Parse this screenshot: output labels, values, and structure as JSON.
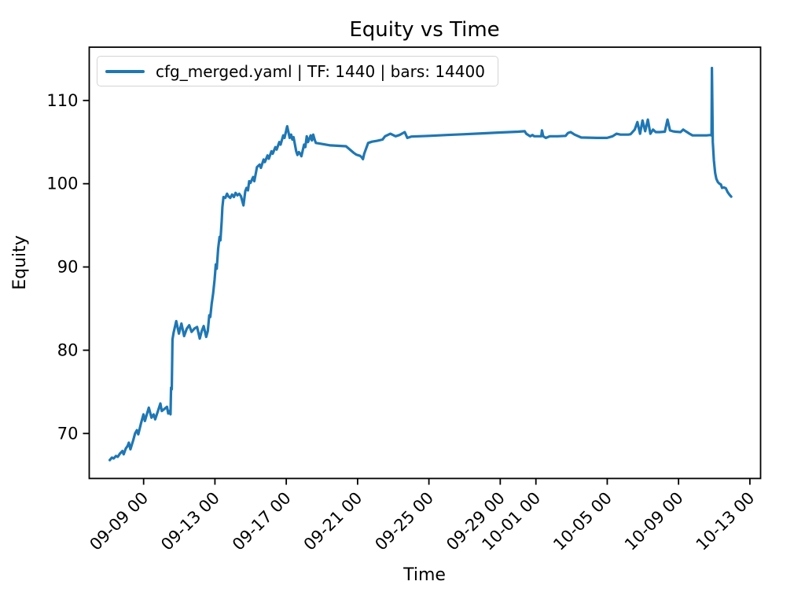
{
  "title": "Equity vs Time",
  "axes": {
    "xlabel": "Time",
    "ylabel": "Equity"
  },
  "legend": {
    "label": "cfg_merged.yaml | TF: 1440 | bars: 14400",
    "position": "upper-left"
  },
  "colors": {
    "line": "#1f77b4",
    "spine": "#000000",
    "legend_border": "#d4d4d4",
    "background": "#ffffff"
  },
  "chart_data": {
    "type": "line",
    "title": "Equity vs Time",
    "xlabel": "Time",
    "ylabel": "Equity",
    "grid": false,
    "legend_position": "upper-left",
    "x_unit_note": "days; tick '09-09 00' is at x=3, one unit = one day",
    "xlim": [
      -0.05,
      37.6
    ],
    "ylim": [
      64.6,
      116.4
    ],
    "xticks": {
      "positions": [
        3,
        7,
        11,
        15,
        19,
        23,
        25,
        29,
        33,
        37
      ],
      "labels": [
        "09-09 00",
        "09-13 00",
        "09-17 00",
        "09-21 00",
        "09-25 00",
        "09-29 00",
        "10-01 00",
        "10-05 00",
        "10-09 00",
        "10-13 00"
      ],
      "rotation_deg": 45
    },
    "yticks": [
      70,
      80,
      90,
      100,
      110
    ],
    "series": [
      {
        "name": "cfg_merged.yaml | TF: 1440 | bars: 14400",
        "color": "#1f77b4",
        "points": [
          [
            1.1,
            66.8
          ],
          [
            1.22,
            67.1
          ],
          [
            1.32,
            67.0
          ],
          [
            1.45,
            67.3
          ],
          [
            1.55,
            67.2
          ],
          [
            1.68,
            67.6
          ],
          [
            1.81,
            67.9
          ],
          [
            1.88,
            67.5
          ],
          [
            2.0,
            68.2
          ],
          [
            2.1,
            68.5
          ],
          [
            2.17,
            68.9
          ],
          [
            2.26,
            68.1
          ],
          [
            2.42,
            69.2
          ],
          [
            2.52,
            70.0
          ],
          [
            2.62,
            70.4
          ],
          [
            2.7,
            69.9
          ],
          [
            2.85,
            71.2
          ],
          [
            2.99,
            72.3
          ],
          [
            3.07,
            71.5
          ],
          [
            3.21,
            72.5
          ],
          [
            3.29,
            73.1
          ],
          [
            3.44,
            71.9
          ],
          [
            3.56,
            72.3
          ],
          [
            3.65,
            71.7
          ],
          [
            3.79,
            72.6
          ],
          [
            3.94,
            73.6
          ],
          [
            4.02,
            72.7
          ],
          [
            4.14,
            72.9
          ],
          [
            4.31,
            73.2
          ],
          [
            4.38,
            72.4
          ],
          [
            4.46,
            72.7
          ],
          [
            4.51,
            72.3
          ],
          [
            4.54,
            75.5
          ],
          [
            4.58,
            75.3
          ],
          [
            4.62,
            81.3
          ],
          [
            4.68,
            82.1
          ],
          [
            4.83,
            83.5
          ],
          [
            4.98,
            82.0
          ],
          [
            5.12,
            83.2
          ],
          [
            5.27,
            81.7
          ],
          [
            5.42,
            82.6
          ],
          [
            5.56,
            83.0
          ],
          [
            5.69,
            82.2
          ],
          [
            5.85,
            82.6
          ],
          [
            6.0,
            82.8
          ],
          [
            6.15,
            81.4
          ],
          [
            6.26,
            82.3
          ],
          [
            6.37,
            82.9
          ],
          [
            6.51,
            81.6
          ],
          [
            6.6,
            82.3
          ],
          [
            6.68,
            84.2
          ],
          [
            6.74,
            84.0
          ],
          [
            6.82,
            85.6
          ],
          [
            6.9,
            86.8
          ],
          [
            6.98,
            88.5
          ],
          [
            7.05,
            90.3
          ],
          [
            7.1,
            89.8
          ],
          [
            7.18,
            92.2
          ],
          [
            7.26,
            93.6
          ],
          [
            7.31,
            93.2
          ],
          [
            7.38,
            95.5
          ],
          [
            7.42,
            97.2
          ],
          [
            7.48,
            98.4
          ],
          [
            7.58,
            98.3
          ],
          [
            7.68,
            98.8
          ],
          [
            7.75,
            98.5
          ],
          [
            7.86,
            98.3
          ],
          [
            7.96,
            98.7
          ],
          [
            8.06,
            98.4
          ],
          [
            8.16,
            98.9
          ],
          [
            8.26,
            98.6
          ],
          [
            8.36,
            98.8
          ],
          [
            8.46,
            98.5
          ],
          [
            8.6,
            97.4
          ],
          [
            8.7,
            99.1
          ],
          [
            8.77,
            99.5
          ],
          [
            8.85,
            99.2
          ],
          [
            8.92,
            100.3
          ],
          [
            8.99,
            100.1
          ],
          [
            9.14,
            100.8
          ],
          [
            9.21,
            100.3
          ],
          [
            9.36,
            102.0
          ],
          [
            9.51,
            102.3
          ],
          [
            9.58,
            101.9
          ],
          [
            9.73,
            102.9
          ],
          [
            9.8,
            102.6
          ],
          [
            9.95,
            103.4
          ],
          [
            10.02,
            103.0
          ],
          [
            10.17,
            103.9
          ],
          [
            10.24,
            103.6
          ],
          [
            10.39,
            104.4
          ],
          [
            10.46,
            104.1
          ],
          [
            10.61,
            105.0
          ],
          [
            10.68,
            104.7
          ],
          [
            10.83,
            105.8
          ],
          [
            10.9,
            105.5
          ],
          [
            11.05,
            106.9
          ],
          [
            11.19,
            105.5
          ],
          [
            11.27,
            105.9
          ],
          [
            11.34,
            105.3
          ],
          [
            11.41,
            105.6
          ],
          [
            11.56,
            103.9
          ],
          [
            11.63,
            103.45
          ],
          [
            11.71,
            103.8
          ],
          [
            11.78,
            103.6
          ],
          [
            11.85,
            103.3
          ],
          [
            12.0,
            104.7
          ],
          [
            12.07,
            104.4
          ],
          [
            12.15,
            105.7
          ],
          [
            12.22,
            105.0
          ],
          [
            12.37,
            105.8
          ],
          [
            12.44,
            105.2
          ],
          [
            12.51,
            105.9
          ],
          [
            12.59,
            105.3
          ],
          [
            12.66,
            104.9
          ],
          [
            12.81,
            104.85
          ],
          [
            13.47,
            104.6
          ],
          [
            14.35,
            104.5
          ],
          [
            14.79,
            103.7
          ],
          [
            14.92,
            103.5
          ],
          [
            15.14,
            103.35
          ],
          [
            15.22,
            103.2
          ],
          [
            15.3,
            102.95
          ],
          [
            15.37,
            103.6
          ],
          [
            15.59,
            104.9
          ],
          [
            15.81,
            105.05
          ],
          [
            16.1,
            105.15
          ],
          [
            16.4,
            105.3
          ],
          [
            16.54,
            105.7
          ],
          [
            16.84,
            106.0
          ],
          [
            17.13,
            105.7
          ],
          [
            17.35,
            105.85
          ],
          [
            17.64,
            106.2
          ],
          [
            17.79,
            105.5
          ],
          [
            18.01,
            105.66
          ],
          [
            19.0,
            105.75
          ],
          [
            20.0,
            105.85
          ],
          [
            21.0,
            105.95
          ],
          [
            22.0,
            106.05
          ],
          [
            23.0,
            106.15
          ],
          [
            24.0,
            106.25
          ],
          [
            24.37,
            106.3
          ],
          [
            24.46,
            106.0
          ],
          [
            24.68,
            105.7
          ],
          [
            24.81,
            105.85
          ],
          [
            24.9,
            105.7
          ],
          [
            25.3,
            105.7
          ],
          [
            25.34,
            106.4
          ],
          [
            25.41,
            105.7
          ],
          [
            25.56,
            105.5
          ],
          [
            25.78,
            105.7
          ],
          [
            26.22,
            105.7
          ],
          [
            26.66,
            105.75
          ],
          [
            26.8,
            106.1
          ],
          [
            26.95,
            106.2
          ],
          [
            27.17,
            105.9
          ],
          [
            27.54,
            105.55
          ],
          [
            28.42,
            105.5
          ],
          [
            28.99,
            105.5
          ],
          [
            29.3,
            105.7
          ],
          [
            29.52,
            106.0
          ],
          [
            29.74,
            105.9
          ],
          [
            30.18,
            105.9
          ],
          [
            30.31,
            105.95
          ],
          [
            30.54,
            106.5
          ],
          [
            30.69,
            107.4
          ],
          [
            30.84,
            106.0
          ],
          [
            30.98,
            107.6
          ],
          [
            31.13,
            106.3
          ],
          [
            31.28,
            107.7
          ],
          [
            31.42,
            106.0
          ],
          [
            31.57,
            106.5
          ],
          [
            31.72,
            106.2
          ],
          [
            31.94,
            106.2
          ],
          [
            32.23,
            106.25
          ],
          [
            32.38,
            107.7
          ],
          [
            32.52,
            106.4
          ],
          [
            32.67,
            106.3
          ],
          [
            32.82,
            106.25
          ],
          [
            33.11,
            106.2
          ],
          [
            33.26,
            106.5
          ],
          [
            33.4,
            106.3
          ],
          [
            33.62,
            106.0
          ],
          [
            33.78,
            105.8
          ],
          [
            34.14,
            105.8
          ],
          [
            34.57,
            105.8
          ],
          [
            34.79,
            105.85
          ],
          [
            34.85,
            105.8
          ],
          [
            34.87,
            113.9
          ],
          [
            34.92,
            105.0
          ],
          [
            34.98,
            102.8
          ],
          [
            35.05,
            101.3
          ],
          [
            35.12,
            100.6
          ],
          [
            35.2,
            100.2
          ],
          [
            35.3,
            100.0
          ],
          [
            35.38,
            99.9
          ],
          [
            35.44,
            99.5
          ],
          [
            35.55,
            99.55
          ],
          [
            35.65,
            99.45
          ],
          [
            35.75,
            99.0
          ],
          [
            35.85,
            98.7
          ],
          [
            35.95,
            98.45
          ]
        ]
      }
    ]
  }
}
